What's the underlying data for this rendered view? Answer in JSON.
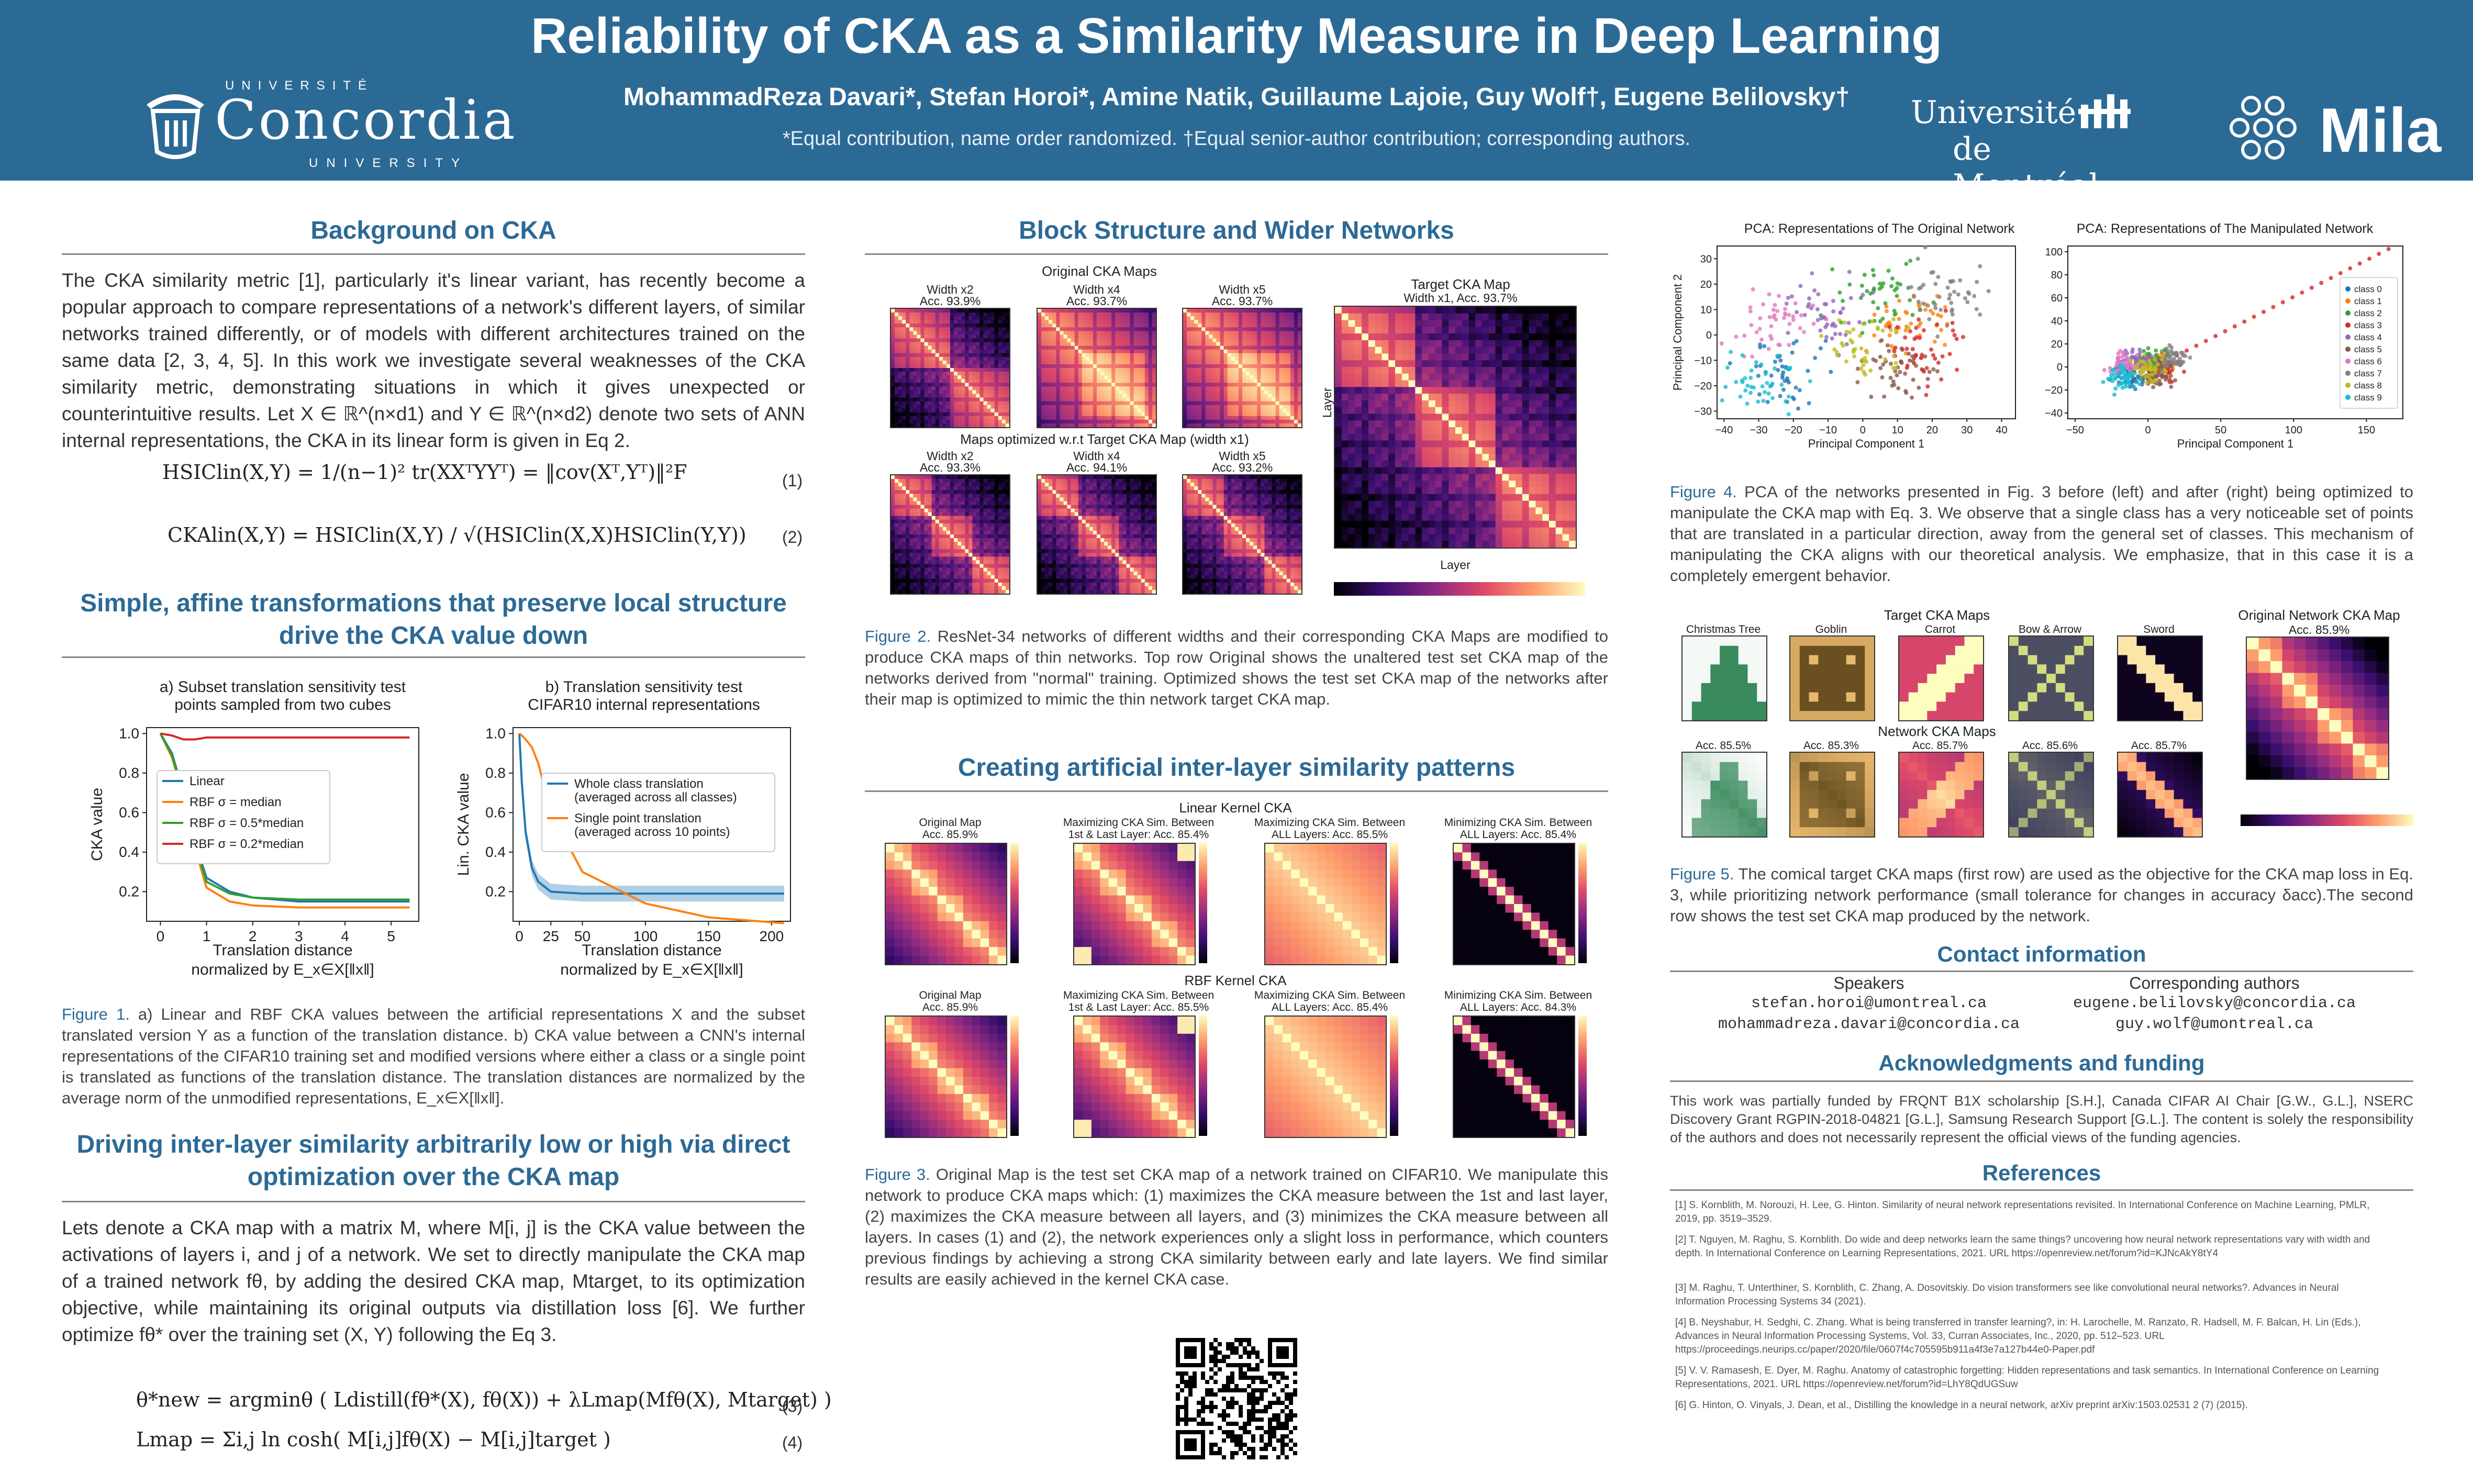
{
  "header": {
    "title": "Reliability of CKA as a Similarity Measure in Deep Learning",
    "authors": "MohammadReza Davari*, Stefan Horoi*, Amine Natik, Guillaume Lajoie, Guy Wolf†, Eugene Belilovsky†",
    "note": "*Equal contribution, name order randomized. †Equal senior-author contribution; corresponding authors.",
    "logo_concordia_top": "UNIVERSITÉ",
    "logo_concordia_name": "Concordia",
    "logo_concordia_bottom": "UNIVERSITY",
    "logo_udem_1": "Université",
    "logo_udem_2": "de Montréal",
    "logo_mila": "Mila"
  },
  "col1": {
    "bg_heading": "Background on CKA",
    "bg_text": "The CKA similarity metric [1], particularly it's linear variant, has recently become a popular approach to compare representations of a network's different layers, of similar networks trained differently, or of models with different architectures trained on the same data [2, 3, 4, 5]. In this work we investigate several weaknesses of the CKA similarity metric, demonstrating situations in which it gives unexpected or counterintuitive results. Let X ∈ ℝ^(n×d1) and Y ∈ ℝ^(n×d2) denote two sets of ANN internal representations, the CKA in its linear form is given in Eq 2.",
    "eq1": "HSIClin(X,Y) = 1/(n−1)² tr(XXᵀYYᵀ) = ‖cov(Xᵀ,Yᵀ)‖²F",
    "eq1_num": "(1)",
    "eq2": "CKAlin(X,Y) = HSIClin(X,Y) / √(HSIClin(X,X)HSIClin(Y,Y))",
    "eq2_num": "(2)",
    "affine_heading": "Simple, affine transformations that preserve local structure drive the CKA value down",
    "fig1_caption_label": "Figure 1.",
    "fig1_caption": "a) Linear and RBF CKA values between the artificial representations X and the subset translated version Y as a function of the translation distance. b) CKA value between a CNN's internal representations of the CIFAR10 training set and modified versions where either a class or a single point is translated as functions of the translation distance. The translation distances are normalized by the average norm of the unmodified representations, E_x∈X[‖x‖].",
    "opt_heading": "Driving inter-layer similarity arbitrarily low or high via direct optimization over the CKA map",
    "opt_text": "Lets denote a CKA map with a matrix M, where M[i, j] is the CKA value between the activations of layers i, and j of a network. We set to directly manipulate the CKA map of a trained network fθ, by adding the desired CKA map, Mtarget, to its optimization objective, while maintaining its original outputs via distillation loss [6]. We further optimize fθ* over the training set (X, Y) following the Eq 3.",
    "eq3": "θ*new = argminθ ( Ldistill(fθ*(X), fθ(X)) + λLmap(Mfθ(X), Mtarget) )",
    "eq3_num": "(3)",
    "eq4": "Lmap = Σi,j ln cosh( M[i,j]fθ(X) − M[i,j]target )",
    "eq4_num": "(4)"
  },
  "col2": {
    "block_heading": "Block Structure and Wider Networks",
    "orig_maps_title": "Original CKA Maps",
    "target_title": "Target CKA Map",
    "target_sub": "Width x1, Acc. 93.7%",
    "opt_row_title": "Maps optimized w.r.t Target CKA Map (width x1)",
    "top_labels": [
      "Width x2\nAcc. 93.9%",
      "Width x4\nAcc. 93.7%",
      "Width x5\nAcc. 93.7%"
    ],
    "bottom_labels": [
      "Width x2\nAcc. 93.3%",
      "Width x4\nAcc. 94.1%",
      "Width x5\nAcc. 93.2%"
    ],
    "layer_label": "Layer",
    "fig2_caption_label": "Figure 2.",
    "fig2_caption": "ResNet-34 networks of different widths and their corresponding CKA Maps are modified to produce CKA maps of thin networks. Top row Original shows the unaltered test set CKA map of the networks derived from \"normal\" training. Optimized shows the test set CKA map of the networks after their map is optimized to mimic the thin network target CKA map.",
    "artificial_heading": "Creating artificial inter-layer similarity patterns",
    "linear_title": "Linear Kernel CKA",
    "rbf_title": "RBF Kernel CKA",
    "linear_labels": [
      "Original Map\nAcc. 85.9%",
      "Maximizing CKA Sim. Between\n1st & Last Layer: Acc. 85.4%",
      "Maximizing CKA Sim. Between\nALL Layers: Acc. 85.5%",
      "Minimizing CKA Sim. Between\nALL Layers: Acc. 85.4%"
    ],
    "rbf_labels": [
      "Original Map\nAcc. 85.9%",
      "Maximizing CKA Sim. Between\n1st & Last Layer: Acc. 85.5%",
      "Maximizing CKA Sim. Between\nALL Layers: Acc. 85.4%",
      "Minimizing CKA Sim. Between\nALL Layers: Acc. 84.3%"
    ],
    "fig3_caption_label": "Figure 3.",
    "fig3_caption": "Original Map is the test set CKA map of a network trained on CIFAR10. We manipulate this network to produce CKA maps which: (1) maximizes the CKA measure between the 1st and last layer, (2) maximizes the CKA measure between all layers, and (3) minimizes the CKA measure between all layers. In cases (1) and (2), the network experiences only a slight loss in performance, which counters previous findings by achieving a strong CKA similarity between early and late layers. We find similar results are easily achieved in the kernel CKA case."
  },
  "col3": {
    "pca_left_title": "PCA: Representations of The Original Network",
    "pca_right_title": "PCA: Representations of The Manipulated Network",
    "pca_xlabel": "Principal Component 1",
    "pca_ylabel": "Principal Component 2",
    "pca_left_xticks": [
      "−40",
      "−30",
      "−20",
      "−10",
      "0",
      "10",
      "20",
      "30",
      "40"
    ],
    "pca_left_yticks": [
      "30",
      "20",
      "10",
      "0",
      "−10",
      "−20",
      "−30"
    ],
    "pca_right_xticks": [
      "−50",
      "0",
      "50",
      "100",
      "150"
    ],
    "pca_right_yticks": [
      "100",
      "80",
      "60",
      "40",
      "20",
      "0",
      "−20",
      "−40"
    ],
    "legend": [
      "class 0",
      "class 1",
      "class 2",
      "class 3",
      "class 4",
      "class 5",
      "class 6",
      "class 7",
      "class 8",
      "class 9"
    ],
    "fig4_caption_label": "Figure 4.",
    "fig4_caption": "PCA of the networks presented in Fig. 3 before (left) and after (right) being optimized to manipulate the CKA map with Eq. 3. We observe that a single class has a very noticeable set of points that are translated in a particular direction, away from the general set of classes. This mechanism of manipulating the CKA aligns with our theoretical analysis. We emphasize, that in this case it is a completely emergent behavior.",
    "target_maps_title": "Target CKA Maps",
    "network_maps_title": "Network CKA Maps",
    "orig_net_title": "Original Network CKA Map",
    "orig_net_acc": "Acc. 85.9%",
    "target_names": [
      "Christmas Tree",
      "Goblin",
      "Carrot",
      "Bow & Arrow",
      "Sword"
    ],
    "net_accs": [
      "Acc. 85.5%",
      "Acc. 85.3%",
      "Acc. 85.7%",
      "Acc. 85.6%",
      "Acc. 85.7%"
    ],
    "fig5_caption_label": "Figure 5.",
    "fig5_caption": "The comical target CKA maps (first row) are used as the objective for the CKA map loss in Eq. 3, while prioritizing network performance (small tolerance for changes in accuracy δacc).The second row shows the test set CKA map produced by the network.",
    "contact_heading": "Contact information",
    "speakers_label": "Speakers",
    "corresponding_label": "Corresponding authors",
    "speaker_emails": [
      "stefan.horoi@umontreal.ca",
      "mohammadreza.davari@concordia.ca"
    ],
    "corresponding_emails": [
      "eugene.belilovsky@concordia.ca",
      "guy.wolf@umontreal.ca"
    ],
    "ack_heading": "Acknowledgments and funding",
    "ack_text": "This work was partially funded by FRQNT B1X scholarship [S.H.], Canada CIFAR AI Chair [G.W., G.L.], NSERC Discovery Grant RGPIN-2018-04821 [G.L.], Samsung Research Support [G.L.]. The content is solely the responsibility of the authors and does not necessarily represent the official views of the funding agencies.",
    "refs_heading": "References",
    "refs": [
      "[1] S. Kornblith, M. Norouzi, H. Lee, G. Hinton. Similarity of neural network representations revisited. In International Conference on Machine Learning, PMLR, 2019, pp. 3519–3529.",
      "[2] T. Nguyen, M. Raghu, S. Kornblith. Do wide and deep networks learn the same things? uncovering how neural network representations vary with width and depth. In International Conference on Learning Representations, 2021. URL https://openreview.net/forum?id=KJNcAkY8tY4",
      "[3] M. Raghu, T. Unterthiner, S. Kornblith, C. Zhang, A. Dosovitskiy. Do vision transformers see like convolutional neural networks?. Advances in Neural Information Processing Systems 34 (2021).",
      "[4] B. Neyshabur, H. Sedghi, C. Zhang. What is being transferred in transfer learning?, in: H. Larochelle, M. Ranzato, R. Hadsell, M. F. Balcan, H. Lin (Eds.), Advances in Neural Information Processing Systems, Vol. 33, Curran Associates, Inc., 2020, pp. 512–523. URL https://proceedings.neurips.cc/paper/2020/file/0607f4c705595b911a4f3e7a127b44e0-Paper.pdf",
      "[5] V. V. Ramasesh, E. Dyer, M. Raghu. Anatomy of catastrophic forgetting: Hidden representations and task semantics. In International Conference on Learning Representations, 2021. URL https://openreview.net/forum?id=LhY8QdUGSuw",
      "[6] G. Hinton, O. Vinyals, J. Dean, et al., Distilling the knowledge in a neural network, arXiv preprint arXiv:1503.02531 2 (7) (2015)."
    ]
  },
  "fig1a": {
    "title": "a) Subset translation sensitivity test\npoints sampled from two cubes",
    "xlabel": "Translation distance\nnormalized by E_x∈X[‖x‖]",
    "ylabel": "CKA value",
    "xticks": [
      "0",
      "1",
      "2",
      "3",
      "4",
      "5"
    ],
    "yticks": [
      "1.0",
      "0.8",
      "0.6",
      "0.4",
      "0.2"
    ]
  },
  "fig1b": {
    "title": "b) Translation sensitivity test\nCIFAR10 internal representations",
    "xlabel": "Translation distance\nnormalized by E_x∈X[‖x‖]",
    "ylabel": "Lin. CKA value",
    "xticks": [
      "0",
      "25",
      "50",
      "100",
      "150",
      "200"
    ],
    "yticks": [
      "1.0",
      "0.8",
      "0.6",
      "0.4",
      "0.2"
    ]
  },
  "chart_data": [
    {
      "type": "line",
      "title": "a) Subset translation sensitivity test points sampled from two cubes",
      "xlabel": "Translation distance normalized by E_x∈X[‖x‖]",
      "ylabel": "CKA value",
      "xlim": [
        -0.3,
        5.6
      ],
      "ylim": [
        0.05,
        1.03
      ],
      "x": [
        0,
        0.25,
        0.5,
        0.75,
        1,
        1.5,
        2,
        3,
        4,
        5,
        5.4
      ],
      "series": [
        {
          "name": "Linear",
          "color": "#1f77b4",
          "values": [
            1.0,
            0.9,
            0.7,
            0.45,
            0.27,
            0.2,
            0.17,
            0.15,
            0.15,
            0.15,
            0.15
          ]
        },
        {
          "name": "RBF σ = median",
          "color": "#ff7f0e",
          "values": [
            1.0,
            0.88,
            0.68,
            0.42,
            0.22,
            0.15,
            0.13,
            0.12,
            0.12,
            0.12,
            0.12
          ]
        },
        {
          "name": "RBF σ = 0.5*median",
          "color": "#2ca02c",
          "values": [
            1.0,
            0.89,
            0.69,
            0.44,
            0.25,
            0.19,
            0.17,
            0.16,
            0.16,
            0.16,
            0.16
          ]
        },
        {
          "name": "RBF σ = 0.2*median",
          "color": "#d62728",
          "values": [
            1.0,
            0.99,
            0.97,
            0.97,
            0.98,
            0.98,
            0.98,
            0.98,
            0.98,
            0.98,
            0.98
          ]
        }
      ],
      "legend": "center-right",
      "grid": false
    },
    {
      "type": "line",
      "title": "b) Translation sensitivity test CIFAR10 internal representations",
      "xlabel": "Translation distance normalized by E_x∈X[‖x‖]",
      "ylabel": "Lin. CKA value",
      "xlim": [
        -5,
        215
      ],
      "ylim": [
        0.05,
        1.03
      ],
      "x": [
        0,
        2,
        5,
        10,
        15,
        25,
        50,
        100,
        150,
        210
      ],
      "series": [
        {
          "name": "Whole class translation\n(averaged across all classes)",
          "color": "#1f77b4",
          "values": [
            1.0,
            0.75,
            0.5,
            0.32,
            0.25,
            0.2,
            0.19,
            0.19,
            0.19,
            0.19
          ]
        },
        {
          "name": "Single point translation\n(averaged across 10 points)",
          "color": "#ff7f0e",
          "values": [
            1.0,
            0.99,
            0.97,
            0.93,
            0.85,
            0.6,
            0.3,
            0.14,
            0.07,
            0.04
          ]
        }
      ],
      "legend": "center-right",
      "grid": false
    }
  ]
}
